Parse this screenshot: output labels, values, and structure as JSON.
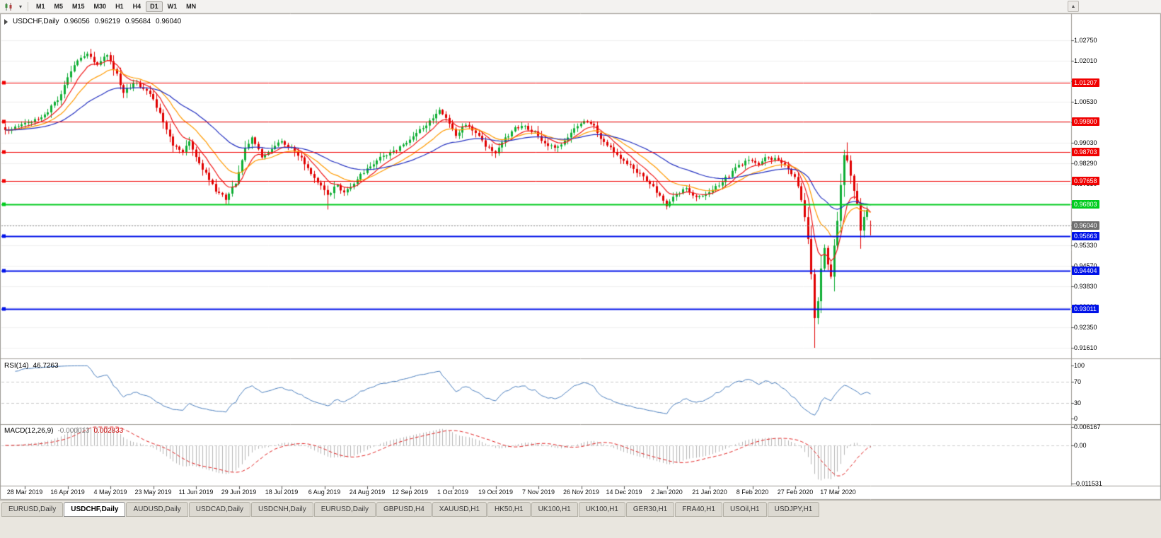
{
  "toolbar": {
    "dropdown_glyph": "▾",
    "scroll_up_glyph": "▲",
    "timeframes": [
      {
        "label": "M1",
        "active": false
      },
      {
        "label": "M5",
        "active": false
      },
      {
        "label": "M15",
        "active": false
      },
      {
        "label": "M30",
        "active": false
      },
      {
        "label": "H1",
        "active": false
      },
      {
        "label": "H4",
        "active": false
      },
      {
        "label": "D1",
        "active": true
      },
      {
        "label": "W1",
        "active": false
      },
      {
        "label": "MN",
        "active": false
      }
    ]
  },
  "main_chart": {
    "title": {
      "symbol": "USDCHF,Daily",
      "open": "0.96056",
      "high": "0.96219",
      "low": "0.95684",
      "close": "0.96040"
    },
    "current_price": {
      "value": "0.96040",
      "bg_color": "#6e6e6e"
    },
    "price_axis_ticks": [
      "1.02750",
      "1.02010",
      "1.01270",
      "1.00530",
      "0.99790",
      "0.99030",
      "0.98290",
      "0.97550",
      "0.96810",
      "0.96070",
      "0.95330",
      "0.94570",
      "0.93830",
      "0.93090",
      "0.92350",
      "0.91610"
    ],
    "horizontal_lines": [
      {
        "price": 1.01207,
        "label": "1.01207",
        "color": "#f00000",
        "width": 1
      },
      {
        "price": 0.998,
        "label": "0.99800",
        "color": "#f00000",
        "width": 1
      },
      {
        "price": 0.98703,
        "label": "0.98703",
        "color": "#f00000",
        "width": 1
      },
      {
        "price": 0.97658,
        "label": "0.97658",
        "color": "#f00000",
        "width": 1
      },
      {
        "price": 0.96803,
        "label": "0.96803",
        "color": "#00cc1e",
        "width": 2
      },
      {
        "price": 0.95663,
        "label": "0.95663",
        "color": "#0012e8",
        "width": 2
      },
      {
        "price": 0.94404,
        "label": "0.94404",
        "color": "#0012e8",
        "width": 2
      },
      {
        "price": 0.93011,
        "label": "0.93011",
        "color": "#0012e8",
        "width": 2
      }
    ]
  },
  "rsi_pane": {
    "name": "RSI(14)",
    "value": "46.7263",
    "axis_ticks": [
      "100",
      "70",
      "30",
      "0"
    ],
    "levels": [
      70,
      30
    ],
    "line_color": "#4a7ebd"
  },
  "macd_pane": {
    "name": "MACD(12,26,9)",
    "main_value": "-0.000013",
    "signal_value": "0.002833",
    "axis_ticks": [
      "0.006167",
      "0.00",
      "-0.011531"
    ],
    "histogram_color": "#b6b6b6",
    "signal_color": "#e02020"
  },
  "date_axis": [
    "28 Mar 2019",
    "16 Apr 2019",
    "4 May 2019",
    "23 May 2019",
    "11 Jun 2019",
    "29 Jun 2019",
    "18 Jul 2019",
    "6 Aug 2019",
    "24 Aug 2019",
    "12 Sep 2019",
    "1 Oct 2019",
    "19 Oct 2019",
    "7 Nov 2019",
    "26 Nov 2019",
    "14 Dec 2019",
    "2 Jan 2020",
    "21 Jan 2020",
    "8 Feb 2020",
    "27 Feb 2020",
    "17 Mar 2020"
  ],
  "tabs": [
    {
      "label": "EURUSD,Daily",
      "active": false
    },
    {
      "label": "USDCHF,Daily",
      "active": true
    },
    {
      "label": "AUDUSD,Daily",
      "active": false
    },
    {
      "label": "USDCAD,Daily",
      "active": false
    },
    {
      "label": "USDCNH,Daily",
      "active": false
    },
    {
      "label": "EURUSD,Daily",
      "active": false
    },
    {
      "label": "GBPUSD,H4",
      "active": false
    },
    {
      "label": "XAUUSD,H1",
      "active": false
    },
    {
      "label": "HK50,H1",
      "active": false
    },
    {
      "label": "UK100,H1",
      "active": false
    },
    {
      "label": "UK100,H1",
      "active": false
    },
    {
      "label": "GER30,H1",
      "active": false
    },
    {
      "label": "FRA40,H1",
      "active": false
    },
    {
      "label": "USOil,H1",
      "active": false
    },
    {
      "label": "USDJPY,H1",
      "active": false
    }
  ],
  "chart_data": {
    "type": "candlestick",
    "symbol": "USDCHF",
    "timeframe": "Daily",
    "displayed_ohlc": {
      "open": 0.96056,
      "high": 0.96219,
      "low": 0.95684,
      "close": 0.9604
    },
    "y_axis_range": {
      "top_tick": 1.0275,
      "bottom_tick": 0.9161,
      "tick_step": 0.0074
    },
    "num_candles": 264,
    "up_color": "#0fae34",
    "down_color": "#e00000",
    "close_anchors": [
      [
        0,
        0.9945
      ],
      [
        4,
        0.996
      ],
      [
        8,
        0.998
      ],
      [
        12,
        1.0005
      ],
      [
        16,
        1.006
      ],
      [
        19,
        1.0135
      ],
      [
        22,
        1.0205
      ],
      [
        25,
        1.0225
      ],
      [
        28,
        1.019
      ],
      [
        31,
        1.022
      ],
      [
        34,
        1.015
      ],
      [
        36,
        1.0085
      ],
      [
        39,
        1.012
      ],
      [
        42,
        1.0105
      ],
      [
        45,
        1.006
      ],
      [
        48,
        0.998
      ],
      [
        51,
        0.989
      ],
      [
        54,
        0.987
      ],
      [
        56,
        0.9915
      ],
      [
        58,
        0.985
      ],
      [
        61,
        0.979
      ],
      [
        64,
        0.973
      ],
      [
        67,
        0.97
      ],
      [
        70,
        0.976
      ],
      [
        73,
        0.988
      ],
      [
        75,
        0.992
      ],
      [
        78,
        0.9855
      ],
      [
        81,
        0.9885
      ],
      [
        84,
        0.9905
      ],
      [
        87,
        0.9885
      ],
      [
        90,
        0.985
      ],
      [
        93,
        0.979
      ],
      [
        96,
        0.9745
      ],
      [
        98,
        0.971
      ],
      [
        101,
        0.9755
      ],
      [
        103,
        0.972
      ],
      [
        106,
        0.976
      ],
      [
        110,
        0.981
      ],
      [
        114,
        0.985
      ],
      [
        118,
        0.987
      ],
      [
        122,
        0.991
      ],
      [
        126,
        0.995
      ],
      [
        130,
        0.999
      ],
      [
        132,
        1.002
      ],
      [
        134,
        0.9995
      ],
      [
        137,
        0.993
      ],
      [
        140,
        0.997
      ],
      [
        143,
        0.994
      ],
      [
        146,
        0.989
      ],
      [
        149,
        0.987
      ],
      [
        152,
        0.992
      ],
      [
        155,
        0.9955
      ],
      [
        158,
        0.9965
      ],
      [
        161,
        0.994
      ],
      [
        164,
        0.9905
      ],
      [
        167,
        0.988
      ],
      [
        170,
        0.991
      ],
      [
        173,
        0.995
      ],
      [
        176,
        0.9985
      ],
      [
        179,
        0.996
      ],
      [
        182,
        0.9905
      ],
      [
        185,
        0.987
      ],
      [
        188,
        0.984
      ],
      [
        191,
        0.981
      ],
      [
        194,
        0.978
      ],
      [
        197,
        0.9745
      ],
      [
        201,
        0.968
      ],
      [
        204,
        0.9715
      ],
      [
        207,
        0.974
      ],
      [
        210,
        0.9705
      ],
      [
        213,
        0.972
      ],
      [
        216,
        0.9745
      ],
      [
        219,
        0.9775
      ],
      [
        222,
        0.981
      ],
      [
        226,
        0.984
      ],
      [
        229,
        0.983
      ],
      [
        231,
        0.985
      ],
      [
        234,
        0.9845
      ],
      [
        237,
        0.983
      ],
      [
        240,
        0.978
      ],
      [
        242,
        0.97
      ],
      [
        244,
        0.956
      ],
      [
        245,
        0.943
      ],
      [
        246,
        0.927
      ],
      [
        247,
        0.933
      ],
      [
        248,
        0.945
      ],
      [
        249,
        0.952
      ],
      [
        250,
        0.946
      ],
      [
        251,
        0.942
      ],
      [
        252,
        0.953
      ],
      [
        253,
        0.962
      ],
      [
        254,
        0.975
      ],
      [
        255,
        0.986
      ],
      [
        256,
        0.984
      ],
      [
        257,
        0.979
      ],
      [
        258,
        0.973
      ],
      [
        259,
        0.968
      ],
      [
        260,
        0.959
      ],
      [
        261,
        0.963
      ],
      [
        262,
        0.9665
      ],
      [
        263,
        0.9604
      ]
    ],
    "wick_overrides": [
      {
        "index": 67,
        "low": 0.968
      },
      {
        "index": 98,
        "low": 0.9662
      },
      {
        "index": 246,
        "low": 0.9161
      },
      {
        "index": 256,
        "high": 0.9905
      },
      {
        "index": 260,
        "low": 0.952
      }
    ],
    "last_candle": {
      "open": 0.96056,
      "high": 0.96219,
      "low": 0.95684,
      "close": 0.9604
    },
    "moving_averages": [
      {
        "period": 8,
        "color": "#f01818"
      },
      {
        "period": 17,
        "color": "#ff9a00"
      },
      {
        "period": 40,
        "color": "#2330c0"
      }
    ],
    "indicators": {
      "rsi": {
        "period": 14,
        "last_value": 46.7263
      },
      "macd": {
        "fast": 12,
        "slow": 26,
        "signal": 9,
        "last_main": -1.3e-05,
        "last_signal": 0.002833
      }
    }
  }
}
